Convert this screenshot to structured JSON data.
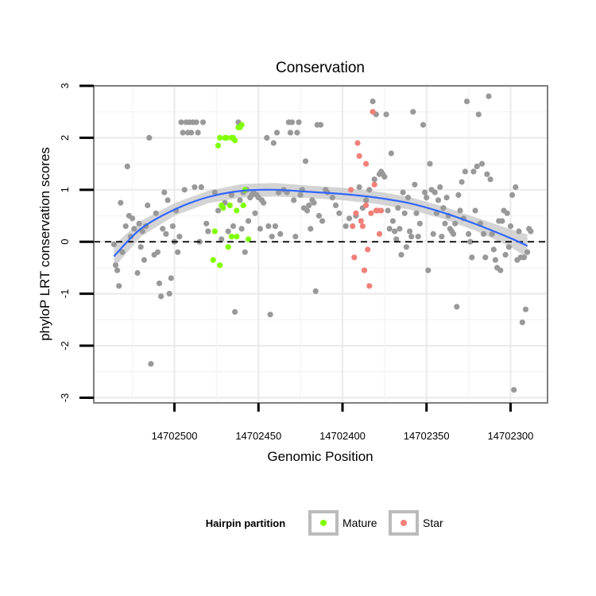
{
  "chart_data": {
    "type": "scatter",
    "title": "Conservation",
    "xlabel": "Genomic Position",
    "ylabel": "phyloP LRT conservation scores",
    "xlim": [
      14702548,
      14702278
    ],
    "x_reversed": true,
    "ylim": [
      -3.1,
      3.0
    ],
    "xticks": [
      14702500,
      14702450,
      14702400,
      14702350,
      14702300
    ],
    "yticks": [
      3,
      2,
      1,
      0,
      -1,
      -2,
      -3
    ],
    "grid": true,
    "reference_line": {
      "y": 0,
      "style": "dashed"
    },
    "legend": {
      "title": "Hairpin partition",
      "placement": "bottom",
      "entries": [
        {
          "label": "Mature",
          "color": "#7fff00"
        },
        {
          "label": "Star",
          "color": "#f08078"
        }
      ]
    },
    "colors": {
      "other": "#999999",
      "mature": "#7fff00",
      "star": "#f08078",
      "smooth_line": "#3366ff",
      "smooth_band": "#cccccc"
    },
    "smooth": {
      "x": [
        14702536,
        14702520,
        14702500,
        14702480,
        14702460,
        14702440,
        14702420,
        14702400,
        14702380,
        14702360,
        14702340,
        14702320,
        14702300,
        14702290
      ],
      "y": [
        -0.28,
        0.25,
        0.62,
        0.86,
        0.98,
        1.0,
        0.96,
        0.92,
        0.85,
        0.74,
        0.56,
        0.33,
        0.07,
        -0.08
      ],
      "se": [
        0.22,
        0.15,
        0.12,
        0.12,
        0.13,
        0.13,
        0.12,
        0.12,
        0.12,
        0.12,
        0.12,
        0.13,
        0.17,
        0.22
      ]
    },
    "series": [
      {
        "name": "Other",
        "points": [
          [
            14702536,
            -0.05
          ],
          [
            14702535,
            -0.45
          ],
          [
            14702534,
            -0.55
          ],
          [
            14702533,
            -0.85
          ],
          [
            14702532,
            0.75
          ],
          [
            14702531,
            -0.2
          ],
          [
            14702529,
            0.3
          ],
          [
            14702528,
            1.45
          ],
          [
            14702527,
            0.5
          ],
          [
            14702526,
            0.1
          ],
          [
            14702525,
            0.45
          ],
          [
            14702524,
            0.25
          ],
          [
            14702522,
            -0.6
          ],
          [
            14702521,
            0.35
          ],
          [
            14702520,
            -0.1
          ],
          [
            14702519,
            0.2
          ],
          [
            14702518,
            -0.35
          ],
          [
            14702517,
            0.3
          ],
          [
            14702516,
            0.7
          ],
          [
            14702515,
            2.0
          ],
          [
            14702514,
            -2.35
          ],
          [
            14702512,
            -0.25
          ],
          [
            14702511,
            0.55
          ],
          [
            14702510,
            -0.2
          ],
          [
            14702509,
            -0.8
          ],
          [
            14702508,
            -1.05
          ],
          [
            14702507,
            0.25
          ],
          [
            14702506,
            0.95
          ],
          [
            14702505,
            0.15
          ],
          [
            14702504,
            0.8
          ],
          [
            14702503,
            -1.0
          ],
          [
            14702502,
            -0.7
          ],
          [
            14702501,
            0.3
          ],
          [
            14702500,
            0.0
          ],
          [
            14702499,
            0.6
          ],
          [
            14702498,
            -0.2
          ],
          [
            14702497,
            0.1
          ],
          [
            14702496,
            2.3
          ],
          [
            14702495,
            2.1
          ],
          [
            14702494,
            1.0
          ],
          [
            14702493,
            2.3
          ],
          [
            14702492,
            2.1
          ],
          [
            14702491,
            2.3
          ],
          [
            14702490,
            2.1
          ],
          [
            14702489,
            2.3
          ],
          [
            14702488,
            1.05
          ],
          [
            14702487,
            2.3
          ],
          [
            14702486,
            2.1
          ],
          [
            14702485,
            0.0
          ],
          [
            14702484,
            1.05
          ],
          [
            14702483,
            2.3
          ],
          [
            14702481,
            0.35
          ],
          [
            14702480,
            0.2
          ],
          [
            14702476,
            0.95
          ],
          [
            14702474,
            0.6
          ],
          [
            14702472,
            0.05
          ],
          [
            14702470,
            0.75
          ],
          [
            14702468,
            0.2
          ],
          [
            14702466,
            0.9
          ],
          [
            14702465,
            0.3
          ],
          [
            14702464,
            -1.35
          ],
          [
            14702462,
            2.3
          ],
          [
            14702461,
            0.8
          ],
          [
            14702460,
            0.25
          ],
          [
            14702459,
            0.95
          ],
          [
            14702458,
            -0.2
          ],
          [
            14702457,
            1.0
          ],
          [
            14702456,
            0.4
          ],
          [
            14702455,
            0.85
          ],
          [
            14702454,
            0.9
          ],
          [
            14702453,
            0.95
          ],
          [
            14702452,
            0.55
          ],
          [
            14702451,
            0.9
          ],
          [
            14702450,
            0.85
          ],
          [
            14702449,
            0.25
          ],
          [
            14702448,
            0.8
          ],
          [
            14702447,
            0.75
          ],
          [
            14702445,
            2.0
          ],
          [
            14702444,
            0.3
          ],
          [
            14702443,
            -1.4
          ],
          [
            14702442,
            0.1
          ],
          [
            14702441,
            1.9
          ],
          [
            14702440,
            0.3
          ],
          [
            14702439,
            2.1
          ],
          [
            14702438,
            0.95
          ],
          [
            14702437,
            0.15
          ],
          [
            14702435,
            1.0
          ],
          [
            14702433,
            0.95
          ],
          [
            14702432,
            2.3
          ],
          [
            14702431,
            2.1
          ],
          [
            14702430,
            2.3
          ],
          [
            14702429,
            0.8
          ],
          [
            14702428,
            0.1
          ],
          [
            14702427,
            2.1
          ],
          [
            14702426,
            2.3
          ],
          [
            14702425,
            0.9
          ],
          [
            14702424,
            1.0
          ],
          [
            14702423,
            0.65
          ],
          [
            14702422,
            1.55
          ],
          [
            14702421,
            0.6
          ],
          [
            14702420,
            0.7
          ],
          [
            14702419,
            0.25
          ],
          [
            14702418,
            0.8
          ],
          [
            14702417,
            0.75
          ],
          [
            14702416,
            -0.95
          ],
          [
            14702415,
            2.25
          ],
          [
            14702414,
            0.5
          ],
          [
            14702413,
            2.25
          ],
          [
            14702412,
            0.4
          ],
          [
            14702410,
            1.0
          ],
          [
            14702409,
            0.95
          ],
          [
            14702406,
            0.85
          ],
          [
            14702404,
            0.7
          ],
          [
            14702402,
            0.55
          ],
          [
            14702398,
            0.3
          ],
          [
            14702396,
            0.45
          ],
          [
            14702392,
            0.5
          ],
          [
            14702390,
            1.05
          ],
          [
            14702388,
            0.65
          ],
          [
            14702386,
            0.8
          ],
          [
            14702384,
            1.0
          ],
          [
            14702382,
            2.7
          ],
          [
            14702381,
            1.2
          ],
          [
            14702380,
            2.45
          ],
          [
            14702378,
            1.3
          ],
          [
            14702377,
            1.35
          ],
          [
            14702376,
            1.3
          ],
          [
            14702375,
            1.25
          ],
          [
            14702374,
            2.45
          ],
          [
            14702373,
            0.6
          ],
          [
            14702372,
            0.25
          ],
          [
            14702371,
            1.7
          ],
          [
            14702370,
            0.4
          ],
          [
            14702369,
            0.2
          ],
          [
            14702368,
            0.05
          ],
          [
            14702367,
            0.65
          ],
          [
            14702366,
            0.25
          ],
          [
            14702365,
            -0.25
          ],
          [
            14702364,
            0.95
          ],
          [
            14702363,
            0.55
          ],
          [
            14702362,
            -0.1
          ],
          [
            14702361,
            0.85
          ],
          [
            14702360,
            0.2
          ],
          [
            14702359,
            0.1
          ],
          [
            14702358,
            2.5
          ],
          [
            14702357,
            1.1
          ],
          [
            14702356,
            0.55
          ],
          [
            14702355,
            0.1
          ],
          [
            14702354,
            0.35
          ],
          [
            14702352,
            2.25
          ],
          [
            14702351,
            0.95
          ],
          [
            14702350,
            0.85
          ],
          [
            14702349,
            -0.55
          ],
          [
            14702348,
            1.5
          ],
          [
            14702347,
            1.0
          ],
          [
            14702346,
            0.15
          ],
          [
            14702345,
            0.95
          ],
          [
            14702344,
            0.55
          ],
          [
            14702343,
            0.8
          ],
          [
            14702342,
            1.05
          ],
          [
            14702341,
            0.1
          ],
          [
            14702340,
            0.65
          ],
          [
            14702339,
            0.35
          ],
          [
            14702338,
            0.85
          ],
          [
            14702337,
            0.5
          ],
          [
            14702336,
            0.25
          ],
          [
            14702335,
            0.2
          ],
          [
            14702334,
            0.15
          ],
          [
            14702333,
            0.35
          ],
          [
            14702332,
            -1.25
          ],
          [
            14702331,
            0.9
          ],
          [
            14702330,
            0.6
          ],
          [
            14702329,
            1.15
          ],
          [
            14702328,
            0.45
          ],
          [
            14702327,
            1.35
          ],
          [
            14702326,
            2.7
          ],
          [
            14702325,
            0.15
          ],
          [
            14702324,
            0.0
          ],
          [
            14702323,
            -0.3
          ],
          [
            14702322,
            1.35
          ],
          [
            14702321,
            0.6
          ],
          [
            14702320,
            1.45
          ],
          [
            14702319,
            2.45
          ],
          [
            14702318,
            0.35
          ],
          [
            14702317,
            1.5
          ],
          [
            14702316,
            0.15
          ],
          [
            14702315,
            -0.3
          ],
          [
            14702314,
            1.3
          ],
          [
            14702313,
            2.8
          ],
          [
            14702312,
            1.2
          ],
          [
            14702311,
            0.15
          ],
          [
            14702310,
            -0.15
          ],
          [
            14702309,
            -0.35
          ],
          [
            14702308,
            -0.5
          ],
          [
            14702307,
            0.4
          ],
          [
            14702306,
            -0.55
          ],
          [
            14702305,
            0.4
          ],
          [
            14702304,
            0.6
          ],
          [
            14702303,
            -0.25
          ],
          [
            14702302,
            0.55
          ],
          [
            14702301,
            -0.1
          ],
          [
            14702300,
            0.3
          ],
          [
            14702299,
            0.9
          ],
          [
            14702298,
            -2.85
          ],
          [
            14702297,
            1.05
          ],
          [
            14702296,
            -0.35
          ],
          [
            14702295,
            0.2
          ],
          [
            14702294,
            -0.3
          ],
          [
            14702293,
            -1.55
          ],
          [
            14702292,
            -0.3
          ],
          [
            14702291,
            -1.3
          ],
          [
            14702290,
            -0.2
          ],
          [
            14702289,
            0.25
          ],
          [
            14702288,
            0.2
          ]
        ]
      },
      {
        "name": "Mature",
        "points": [
          [
            14702474,
            1.85
          ],
          [
            14702473,
            2.0
          ],
          [
            14702472,
            0.7
          ],
          [
            14702471,
            0.65
          ],
          [
            14702470,
            2.0
          ],
          [
            14702469,
            2.0
          ],
          [
            14702468,
            -0.1
          ],
          [
            14702467,
            0.7
          ],
          [
            14702466,
            2.0
          ],
          [
            14702465,
            2.0
          ],
          [
            14702464,
            1.95
          ],
          [
            14702463,
            0.6
          ],
          [
            14702462,
            2.2
          ],
          [
            14702461,
            2.2
          ],
          [
            14702460,
            2.25
          ],
          [
            14702459,
            0.7
          ],
          [
            14702458,
            1.0
          ],
          [
            14702456,
            0.05
          ],
          [
            14702476,
            0.2
          ],
          [
            14702477,
            -0.35
          ],
          [
            14702473,
            -0.45
          ],
          [
            14702466,
            0.1
          ],
          [
            14702463,
            0.1
          ]
        ]
      },
      {
        "name": "Star",
        "points": [
          [
            14702395,
            1.0
          ],
          [
            14702394,
            0.3
          ],
          [
            14702393,
            -0.3
          ],
          [
            14702392,
            0.55
          ],
          [
            14702391,
            1.9
          ],
          [
            14702390,
            1.65
          ],
          [
            14702389,
            0.4
          ],
          [
            14702388,
            0.3
          ],
          [
            14702387,
            -0.55
          ],
          [
            14702386,
            1.5
          ],
          [
            14702385,
            -0.15
          ],
          [
            14702384,
            -0.85
          ],
          [
            14702383,
            0.55
          ],
          [
            14702382,
            2.5
          ],
          [
            14702381,
            1.1
          ],
          [
            14702380,
            0.6
          ],
          [
            14702379,
            0.6
          ],
          [
            14702378,
            0.15
          ],
          [
            14702377,
            0.6
          ],
          [
            14702386,
            0.7
          ]
        ]
      }
    ]
  }
}
